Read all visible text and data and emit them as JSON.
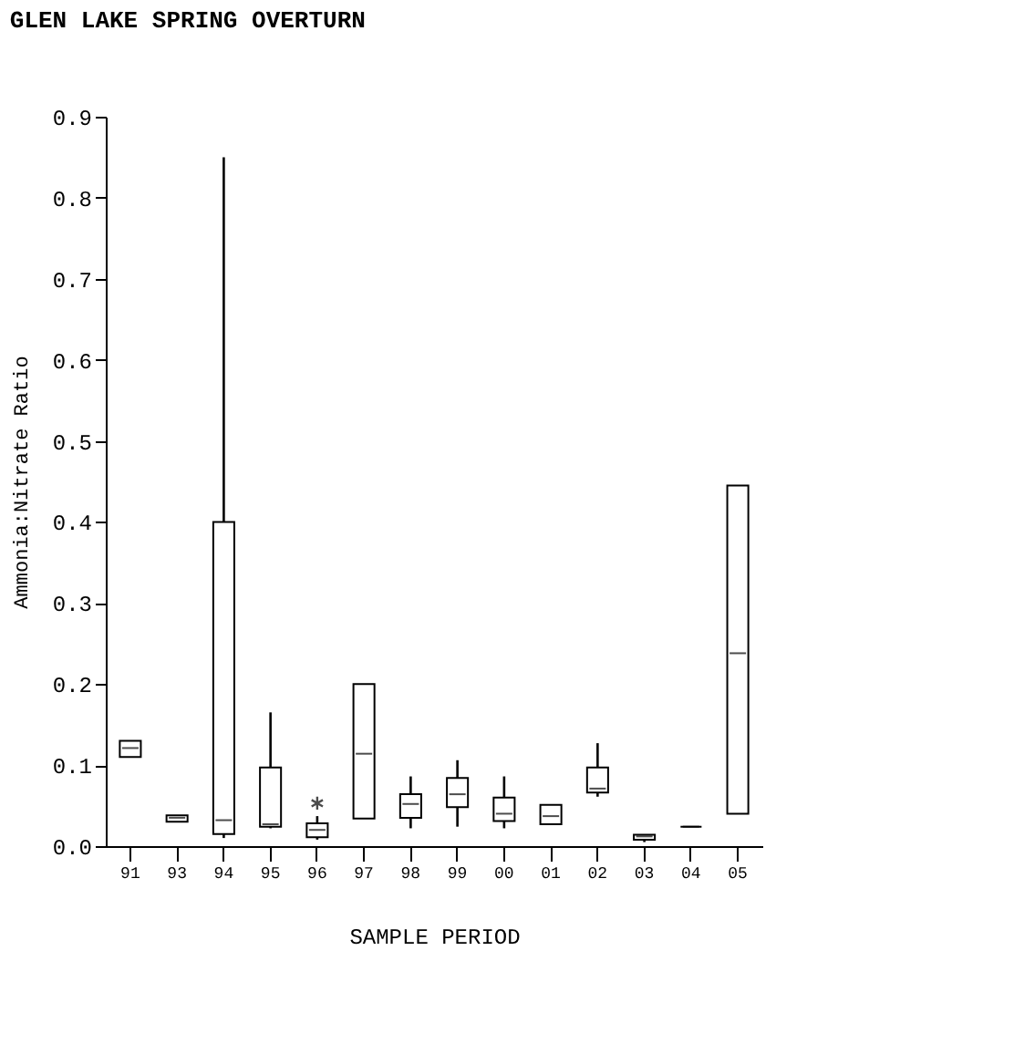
{
  "chart_data": {
    "type": "box",
    "title": "GLEN LAKE SPRING OVERTURN",
    "xlabel": "SAMPLE PERIOD",
    "ylabel": "Ammonia:Nitrate Ratio",
    "categories": [
      "91",
      "93",
      "94",
      "95",
      "96",
      "97",
      "98",
      "99",
      "00",
      "01",
      "02",
      "03",
      "04",
      "05"
    ],
    "boxes": [
      {
        "low": 0.11,
        "q1": 0.11,
        "median": 0.121,
        "q3": 0.13,
        "high": 0.13
      },
      {
        "low": 0.03,
        "q1": 0.03,
        "median": 0.035,
        "q3": 0.038,
        "high": 0.038
      },
      {
        "low": 0.01,
        "q1": 0.015,
        "median": 0.032,
        "q3": 0.4,
        "high": 0.85
      },
      {
        "low": 0.022,
        "q1": 0.024,
        "median": 0.027,
        "q3": 0.097,
        "high": 0.165
      },
      {
        "low": 0.008,
        "q1": 0.011,
        "median": 0.02,
        "q3": 0.028,
        "high": 0.037,
        "outliers": [
          0.053
        ]
      },
      {
        "low": 0.034,
        "q1": 0.034,
        "median": 0.114,
        "q3": 0.2,
        "high": 0.2
      },
      {
        "low": 0.022,
        "q1": 0.035,
        "median": 0.052,
        "q3": 0.064,
        "high": 0.086
      },
      {
        "low": 0.024,
        "q1": 0.048,
        "median": 0.064,
        "q3": 0.084,
        "high": 0.106
      },
      {
        "low": 0.022,
        "q1": 0.031,
        "median": 0.04,
        "q3": 0.06,
        "high": 0.086
      },
      {
        "low": 0.027,
        "q1": 0.027,
        "median": 0.037,
        "q3": 0.051,
        "high": 0.051
      },
      {
        "low": 0.061,
        "q1": 0.066,
        "median": 0.071,
        "q3": 0.097,
        "high": 0.127
      },
      {
        "low": 0.005,
        "q1": 0.008,
        "median": 0.012,
        "q3": 0.014,
        "high": 0.014
      },
      {
        "low": 0.024,
        "q1": 0.024,
        "median": 0.024,
        "q3": 0.024,
        "high": 0.024
      },
      {
        "low": 0.04,
        "q1": 0.04,
        "median": 0.238,
        "q3": 0.445,
        "high": 0.445
      }
    ],
    "ylim": [
      0,
      0.9
    ],
    "yticks": [
      {
        "value": 0,
        "label": "0.0"
      },
      {
        "value": 0.1,
        "label": "0.1"
      },
      {
        "value": 0.2,
        "label": "0.2"
      },
      {
        "value": 0.3,
        "label": "0.3"
      },
      {
        "value": 0.4,
        "label": "0.4"
      },
      {
        "value": 0.5,
        "label": "0.5"
      },
      {
        "value": 0.6,
        "label": "0.6"
      },
      {
        "value": 0.7,
        "label": "0.7"
      },
      {
        "value": 0.8,
        "label": "0.8"
      },
      {
        "value": 0.9,
        "label": "0.9"
      }
    ],
    "grid": false
  }
}
